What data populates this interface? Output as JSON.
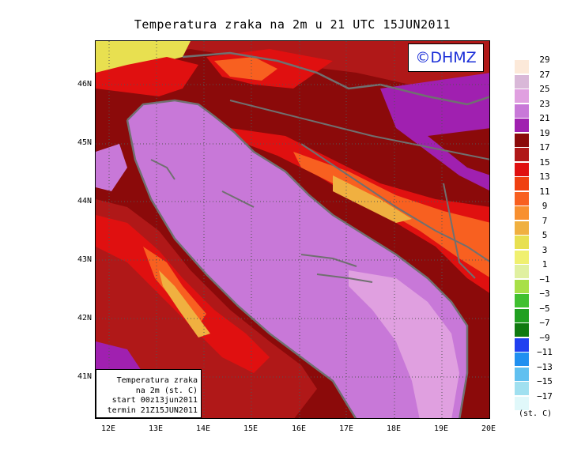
{
  "title": "Temperatura zraka na 2m u 21 UTC 15JUN2011",
  "copyright": "©DHMZ",
  "info_box": [
    "Temperatura zraka",
    "na 2m (st. C)",
    "start 00z13jun2011",
    "termin 21Z15JUN2011"
  ],
  "lat_labels": [
    "46N",
    "45N",
    "44N",
    "43N",
    "42N",
    "41N"
  ],
  "lon_labels": [
    "12E",
    "13E",
    "14E",
    "15E",
    "16E",
    "17E",
    "18E",
    "19E",
    "20E"
  ],
  "legend": {
    "labels": [
      "29",
      "27",
      "25",
      "23",
      "21",
      "19",
      "17",
      "15",
      "13",
      "11",
      "9",
      "7",
      "5",
      "3",
      "1",
      "−1",
      "−3",
      "−5",
      "−7",
      "−9",
      "−11",
      "−13",
      "−15",
      "−17"
    ],
    "colors": [
      "#fce9d9",
      "#d9b8d8",
      "#e0a0e0",
      "#c878d8",
      "#a020b0",
      "#8b0a0a",
      "#b01818",
      "#e01010",
      "#f04010",
      "#f86020",
      "#f89030",
      "#f0b040",
      "#e8e050",
      "#f0f070",
      "#e0f0a0",
      "#a8e048",
      "#40c030",
      "#20a020",
      "#107a10",
      "#2040f0",
      "#2090f0",
      "#60c0f0",
      "#a0e0f0",
      "#e0f8fa"
    ],
    "units": "(st. C)"
  },
  "map": {
    "projection": "lat-lon",
    "lon_range": [
      11.7,
      20.0
    ],
    "lat_range": [
      40.25,
      46.8
    ],
    "gridlines": "dotted",
    "field": "2m air temperature",
    "sea_color": "#c878d8",
    "sea_light_color": "#e0a0e0"
  }
}
